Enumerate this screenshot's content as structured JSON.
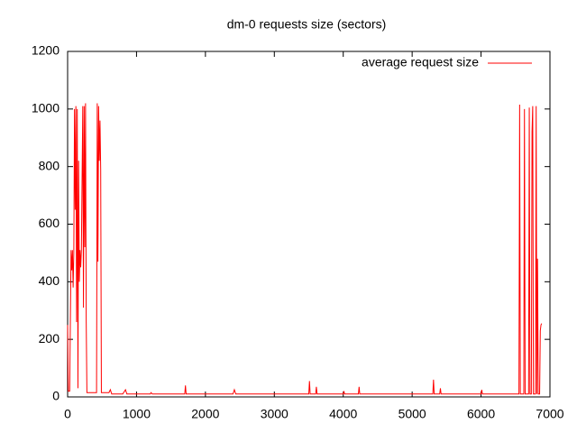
{
  "chart_data": {
    "type": "line",
    "title": "dm-0 requests size (sectors)",
    "xlim": [
      0,
      7000
    ],
    "xticks": [
      0,
      1000,
      2000,
      3000,
      4000,
      5000,
      6000,
      7000
    ],
    "ylim": [
      0,
      1200
    ],
    "yticks": [
      0,
      200,
      400,
      600,
      800,
      1000,
      1200
    ],
    "legend": "top-right",
    "series": [
      {
        "name": "average request size",
        "color": "#ff0000",
        "x": [
          0,
          10,
          30,
          50,
          60,
          70,
          80,
          90,
          100,
          110,
          120,
          130,
          140,
          150,
          160,
          170,
          180,
          190,
          200,
          220,
          230,
          240,
          250,
          260,
          270,
          280,
          300,
          350,
          400,
          420,
          430,
          440,
          450,
          460,
          470,
          480,
          490,
          600,
          620,
          640,
          800,
          840,
          860,
          1200,
          1210,
          1230,
          1700,
          1710,
          1720,
          2400,
          2420,
          2440,
          3500,
          3510,
          3520,
          3600,
          3610,
          3620,
          4000,
          4010,
          4020,
          4220,
          4230,
          4240,
          5300,
          5310,
          5320,
          5400,
          5410,
          5420,
          6000,
          6010,
          6020,
          6550,
          6560,
          6570,
          6620,
          6630,
          6640,
          6690,
          6700,
          6710,
          6730,
          6740,
          6750,
          6760,
          6790,
          6800,
          6810,
          6820,
          6830,
          6850,
          6860,
          6870,
          6880
        ],
        "values": [
          250,
          20,
          20,
          510,
          440,
          510,
          380,
          500,
          1000,
          650,
          1010,
          260,
          1000,
          30,
          820,
          400,
          510,
          450,
          510,
          1010,
          310,
          1010,
          520,
          1020,
          260,
          15,
          15,
          15,
          15,
          15,
          1020,
          470,
          1010,
          820,
          960,
          790,
          15,
          15,
          25,
          10,
          10,
          25,
          10,
          10,
          15,
          10,
          10,
          40,
          10,
          10,
          25,
          10,
          10,
          55,
          10,
          10,
          35,
          10,
          10,
          20,
          10,
          10,
          35,
          10,
          10,
          60,
          10,
          10,
          30,
          10,
          10,
          25,
          10,
          10,
          1015,
          10,
          10,
          1000,
          10,
          10,
          1005,
          10,
          10,
          920,
          1010,
          10,
          10,
          1010,
          10,
          480,
          10,
          10,
          230,
          250,
          255
        ]
      }
    ]
  }
}
